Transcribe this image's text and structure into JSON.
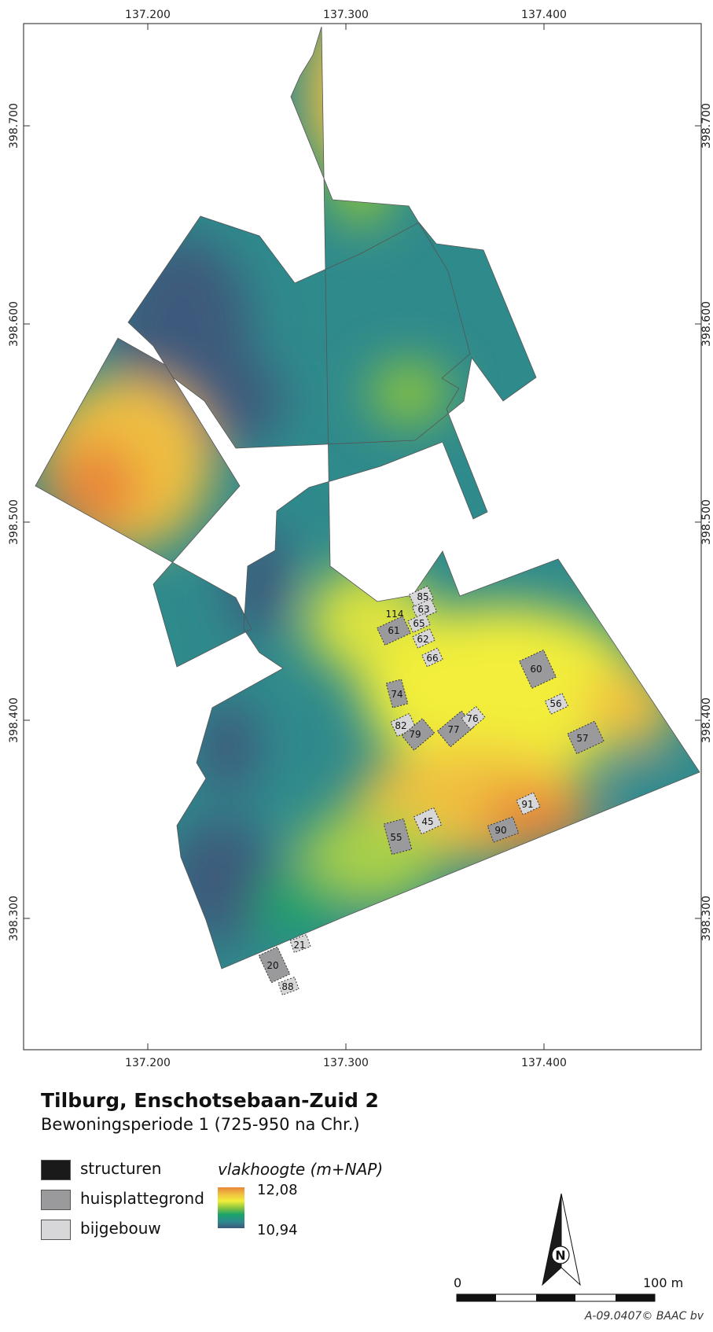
{
  "map": {
    "x_ticks": [
      "137.200",
      "137.300",
      "137.400"
    ],
    "y_ticks": [
      "398.700",
      "398.600",
      "398.500",
      "398.400",
      "398.300"
    ],
    "units": [
      {
        "id": "85",
        "kind": "bijgebouw"
      },
      {
        "id": "63",
        "kind": "bijgebouw"
      },
      {
        "id": "114",
        "kind": "bijgebouw"
      },
      {
        "id": "65",
        "kind": "bijgebouw"
      },
      {
        "id": "61",
        "kind": "huisplattegrond"
      },
      {
        "id": "62",
        "kind": "bijgebouw"
      },
      {
        "id": "66",
        "kind": "bijgebouw"
      },
      {
        "id": "60",
        "kind": "huisplattegrond"
      },
      {
        "id": "74",
        "kind": "huisplattegrond"
      },
      {
        "id": "56",
        "kind": "bijgebouw"
      },
      {
        "id": "82",
        "kind": "bijgebouw"
      },
      {
        "id": "79",
        "kind": "huisplattegrond"
      },
      {
        "id": "77",
        "kind": "huisplattegrond"
      },
      {
        "id": "76",
        "kind": "bijgebouw"
      },
      {
        "id": "57",
        "kind": "huisplattegrond"
      },
      {
        "id": "91",
        "kind": "bijgebouw"
      },
      {
        "id": "45",
        "kind": "bijgebouw"
      },
      {
        "id": "55",
        "kind": "huisplattegrond"
      },
      {
        "id": "90",
        "kind": "huisplattegrond"
      },
      {
        "id": "21",
        "kind": "bijgebouw"
      },
      {
        "id": "20",
        "kind": "huisplattegrond"
      },
      {
        "id": "88",
        "kind": "bijgebouw"
      }
    ]
  },
  "title": "Tilburg, Enschotsebaan-Zuid 2",
  "subtitle": "Bewoningsperiode 1 (725-950 na Chr.)",
  "legend": {
    "structuren": "structuren",
    "huisplattegrond": "huisplattegrond",
    "bijgebouw": "bijgebouw",
    "ramp_title": "vlakhoogte (m+NAP)",
    "ramp_max": "12,08",
    "ramp_min": "10,94",
    "colors": {
      "structuren": "#1a1a1a",
      "huisplattegrond": "#9a9a9c",
      "bijgebouw": "#d7d7d9"
    },
    "ramp_colors": [
      "#e8873a",
      "#f0c040",
      "#f2ee3a",
      "#8cc63e",
      "#1aa36a",
      "#2e8a8e",
      "#3c5a7c"
    ]
  },
  "scalebar": {
    "start": "0",
    "end": "100 m"
  },
  "north": "N",
  "credit": "A-09.0407© BAAC bv"
}
